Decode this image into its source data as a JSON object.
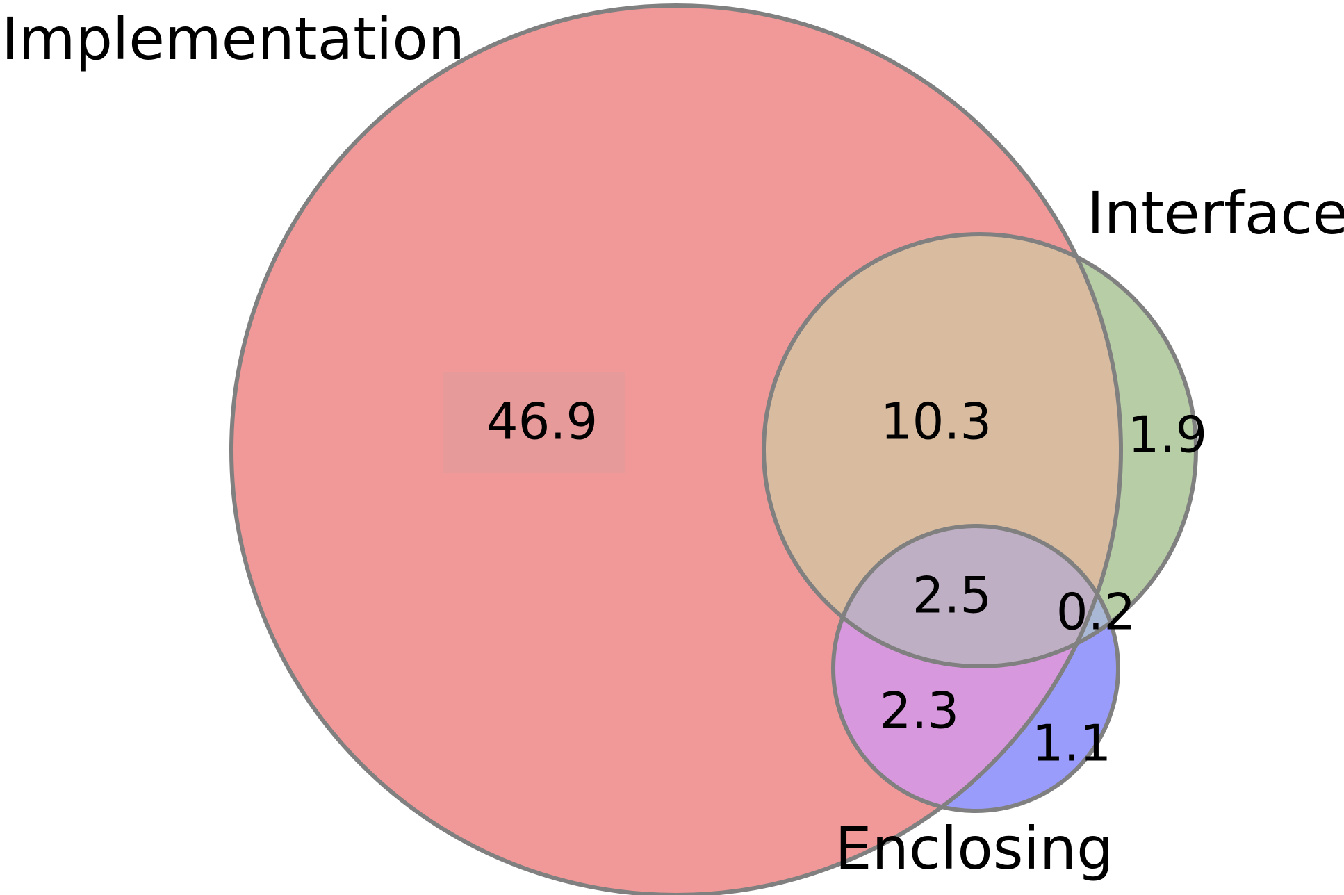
{
  "diagram": {
    "type": "venn3",
    "sets": [
      {
        "id": "implementation",
        "label": "Implementation",
        "color": "#e98a8a"
      },
      {
        "id": "interface",
        "label": "Interface",
        "color": "#a7c48c"
      },
      {
        "id": "enclosing",
        "label": "Enclosing",
        "color": "#8a8dff"
      }
    ],
    "regions": [
      {
        "id": "impl-only",
        "sets": [
          "implementation"
        ],
        "value": "46.9",
        "color": "#f19898"
      },
      {
        "id": "impl-interface",
        "sets": [
          "implementation",
          "interface"
        ],
        "value": "10.3",
        "color": "#d9bca0"
      },
      {
        "id": "interface-only",
        "sets": [
          "interface"
        ],
        "value": "1.9",
        "color": "#b6cda5"
      },
      {
        "id": "all-three",
        "sets": [
          "implementation",
          "interface",
          "enclosing"
        ],
        "value": "2.5",
        "color": "#bfafc4"
      },
      {
        "id": "interface-enclosing",
        "sets": [
          "interface",
          "enclosing"
        ],
        "value": "0.2",
        "color": "#a8b8d5"
      },
      {
        "id": "impl-enclosing",
        "sets": [
          "implementation",
          "enclosing"
        ],
        "value": "2.3",
        "color": "#d898dd"
      },
      {
        "id": "enclosing-only",
        "sets": [
          "enclosing"
        ],
        "value": "1.1",
        "color": "#9a9cfb"
      }
    ],
    "outline_color": "#808080",
    "highlight_color": "#e69a9a"
  }
}
